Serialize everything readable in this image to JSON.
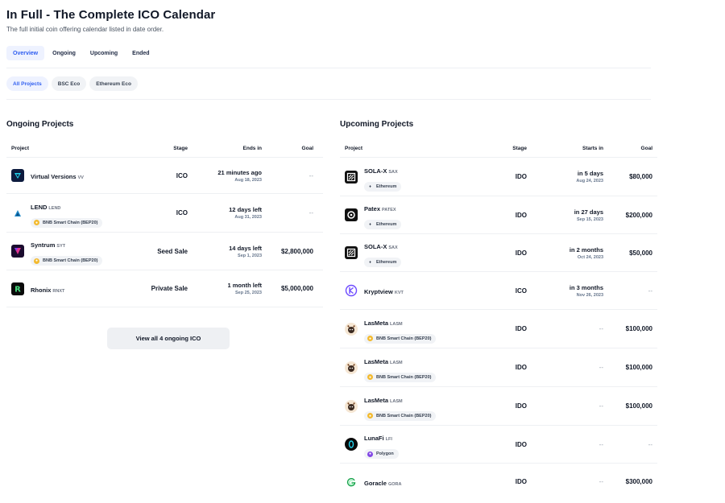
{
  "header": {
    "title": "In Full - The Complete ICO Calendar",
    "subtitle": "The full initial coin offering calendar listed in date order."
  },
  "tabs": [
    "Overview",
    "Ongoing",
    "Upcoming",
    "Ended"
  ],
  "chips": [
    "All Projects",
    "BSC Eco",
    "Ethereum Eco"
  ],
  "ongoing": {
    "title": "Ongoing Projects",
    "columns": {
      "project": "Project",
      "stage": "Stage",
      "time": "Ends in",
      "goal": "Goal"
    },
    "rows": [
      {
        "name": "Virtual Versions",
        "symbol": "VV",
        "chain": "",
        "stage": "ICO",
        "time": "21 minutes ago",
        "date": "Aug 18, 2023",
        "goal": "--"
      },
      {
        "name": "LEND",
        "symbol": "LEND",
        "chain": "BNB Smart Chain (BEP20)",
        "stage": "ICO",
        "time": "12 days left",
        "date": "Aug 31, 2023",
        "goal": "--"
      },
      {
        "name": "Syntrum",
        "symbol": "SYT",
        "chain": "BNB Smart Chain (BEP20)",
        "stage": "Seed Sale",
        "time": "14 days left",
        "date": "Sep 1, 2023",
        "goal": "$2,800,000"
      },
      {
        "name": "Rhonix",
        "symbol": "RNXT",
        "chain": "",
        "stage": "Private Sale",
        "time": "1 month left",
        "date": "Sep 25, 2023",
        "goal": "$5,000,000"
      }
    ],
    "view_all": "View all 4 ongoing ICO"
  },
  "upcoming": {
    "title": "Upcoming Projects",
    "columns": {
      "project": "Project",
      "stage": "Stage",
      "time": "Starts in",
      "goal": "Goal"
    },
    "rows": [
      {
        "name": "SOLA-X",
        "symbol": "SAX",
        "chain": "Ethereum",
        "stage": "IDO",
        "time": "in 5 days",
        "date": "Aug 24, 2023",
        "goal": "$80,000"
      },
      {
        "name": "Patex",
        "symbol": "PATEX",
        "chain": "Ethereum",
        "stage": "IDO",
        "time": "in 27 days",
        "date": "Sep 15, 2023",
        "goal": "$200,000"
      },
      {
        "name": "SOLA-X",
        "symbol": "SAX",
        "chain": "Ethereum",
        "stage": "IDO",
        "time": "in 2 months",
        "date": "Oct 24, 2023",
        "goal": "$50,000"
      },
      {
        "name": "Kryptview",
        "symbol": "KVT",
        "chain": "",
        "stage": "ICO",
        "time": "in 3 months",
        "date": "Nov 26, 2023",
        "goal": "--"
      },
      {
        "name": "LasMeta",
        "symbol": "LASM",
        "chain": "BNB Smart Chain (BEP20)",
        "stage": "IDO",
        "time": "--",
        "date": "",
        "goal": "$100,000"
      },
      {
        "name": "LasMeta",
        "symbol": "LASM",
        "chain": "BNB Smart Chain (BEP20)",
        "stage": "IDO",
        "time": "--",
        "date": "",
        "goal": "$100,000"
      },
      {
        "name": "LasMeta",
        "symbol": "LASM",
        "chain": "BNB Smart Chain (BEP20)",
        "stage": "IDO",
        "time": "--",
        "date": "",
        "goal": "$100,000"
      },
      {
        "name": "LunaFi",
        "symbol": "LFI",
        "chain": "Polygon",
        "stage": "IDO",
        "time": "--",
        "date": "",
        "goal": "--"
      },
      {
        "name": "Goracle",
        "symbol": "GORA",
        "chain": "",
        "stage": "IDO",
        "time": "--",
        "date": "",
        "goal": "$300,000"
      }
    ]
  },
  "colors": {
    "accent": "#2f5ef0",
    "bnb": "#f3ba2f",
    "polygon": "#8247e5"
  }
}
